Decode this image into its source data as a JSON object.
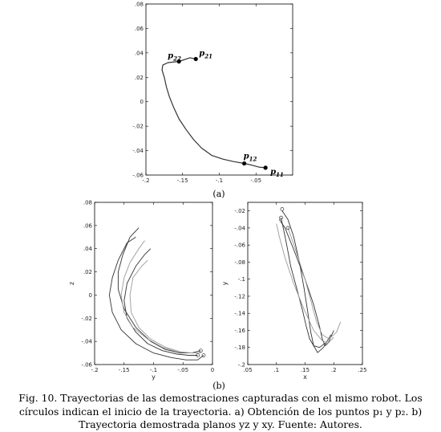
{
  "figure": {
    "label_a": "(a)",
    "label_b": "(b)",
    "caption": "Fig. 10. Trayectorias de las demostraciones capturadas con el mismo robot. Los círculos indican el inicio de la trayectoria. a) Obtención de los puntos p₁ y p₂. b) Trayectoria demostrada planos yz y xy. Fuente: Autores."
  },
  "colors": {
    "line": "#333333",
    "axes": "#000000",
    "light_line": "#9a9a9a"
  },
  "chart_data": [
    {
      "type": "line",
      "panel": "a",
      "xlim": [
        -0.2,
        0.0
      ],
      "ylim": [
        -0.06,
        0.08
      ],
      "xticks": [
        -0.2,
        -0.15,
        -0.1,
        -0.05
      ],
      "yticks": [
        -0.06,
        -0.04,
        -0.02,
        0,
        0.02,
        0.04,
        0.06,
        0.08
      ],
      "xlabel": "",
      "ylabel": "",
      "series": [
        {
          "x": [
            -0.132,
            -0.14,
            -0.155,
            -0.17,
            -0.177,
            -0.178,
            -0.175,
            -0.172,
            -0.168,
            -0.162,
            -0.155,
            -0.145,
            -0.135,
            -0.124,
            -0.11,
            -0.095,
            -0.08,
            -0.066,
            -0.055,
            -0.046,
            -0.037
          ],
          "y": [
            0.035,
            0.036,
            0.033,
            0.032,
            0.03,
            0.026,
            0.02,
            0.012,
            0.004,
            -0.005,
            -0.014,
            -0.023,
            -0.031,
            -0.038,
            -0.044,
            -0.047,
            -0.049,
            -0.0505,
            -0.052,
            -0.0535,
            -0.054
          ]
        }
      ],
      "points": [
        {
          "name": "p",
          "sub": "21",
          "x": -0.132,
          "y": 0.035
        },
        {
          "name": "p",
          "sub": "22",
          "x": -0.155,
          "y": 0.033
        },
        {
          "name": "p",
          "sub": "12",
          "x": -0.066,
          "y": -0.0505
        },
        {
          "name": "p",
          "sub": "11",
          "x": -0.037,
          "y": -0.054
        }
      ]
    },
    {
      "type": "line",
      "panel": "b-left",
      "xlim": [
        -0.2,
        0.0
      ],
      "ylim": [
        -0.06,
        0.08
      ],
      "xticks": [
        -0.2,
        -0.15,
        -0.1,
        -0.05,
        0
      ],
      "yticks": [
        -0.06,
        -0.04,
        -0.02,
        0,
        0.02,
        0.04,
        0.06,
        0.08
      ],
      "xlabel": "y",
      "ylabel": "z",
      "series": [
        {
          "x": [
            -0.13,
            -0.145,
            -0.16,
            -0.17,
            -0.175,
            -0.17,
            -0.155,
            -0.13,
            -0.1,
            -0.07,
            -0.045,
            -0.025,
            -0.015
          ],
          "y": [
            0.05,
            0.045,
            0.03,
            0.015,
            0.0,
            -0.015,
            -0.03,
            -0.042,
            -0.05,
            -0.054,
            -0.056,
            -0.056,
            -0.052
          ]
        },
        {
          "x": [
            -0.125,
            -0.14,
            -0.152,
            -0.16,
            -0.16,
            -0.15,
            -0.13,
            -0.105,
            -0.08,
            -0.055,
            -0.035,
            -0.02
          ],
          "y": [
            0.058,
            0.05,
            0.035,
            0.02,
            0.005,
            -0.012,
            -0.028,
            -0.04,
            -0.047,
            -0.05,
            -0.05,
            -0.048
          ]
        },
        {
          "x": [
            -0.105,
            -0.115,
            -0.13,
            -0.145,
            -0.15,
            -0.145,
            -0.13,
            -0.11,
            -0.085,
            -0.06,
            -0.04,
            -0.025
          ],
          "y": [
            0.04,
            0.035,
            0.025,
            0.01,
            -0.005,
            -0.02,
            -0.032,
            -0.042,
            -0.048,
            -0.051,
            -0.052,
            -0.052
          ]
        },
        {
          "x": [
            -0.115,
            -0.125,
            -0.14,
            -0.15,
            -0.155,
            -0.15,
            -0.135,
            -0.11,
            -0.085,
            -0.06,
            -0.038
          ],
          "y": [
            0.047,
            0.04,
            0.028,
            0.015,
            0.0,
            -0.015,
            -0.028,
            -0.038,
            -0.045,
            -0.049,
            -0.05
          ]
        },
        {
          "x": [
            -0.11,
            -0.12,
            -0.135,
            -0.14,
            -0.138,
            -0.125,
            -0.105,
            -0.08,
            -0.055,
            -0.035,
            -0.02
          ],
          "y": [
            0.03,
            0.025,
            0.015,
            0.0,
            -0.015,
            -0.028,
            -0.038,
            -0.045,
            -0.049,
            -0.05,
            -0.05
          ]
        }
      ],
      "start_points": [
        {
          "x": -0.015,
          "y": -0.052
        },
        {
          "x": -0.025,
          "y": -0.052
        },
        {
          "x": -0.02,
          "y": -0.048
        }
      ]
    },
    {
      "type": "line",
      "panel": "b-right",
      "xlim": [
        0.05,
        0.25
      ],
      "ylim": [
        -0.2,
        -0.01
      ],
      "xticks": [
        0.05,
        0.1,
        0.15,
        0.2,
        0.25
      ],
      "yticks": [
        -0.2,
        -0.18,
        -0.16,
        -0.14,
        -0.12,
        -0.1,
        -0.08,
        -0.06,
        -0.04,
        -0.02
      ],
      "xlabel": "x",
      "ylabel": "y",
      "series": [
        {
          "x": [
            0.108,
            0.112,
            0.118,
            0.125,
            0.135,
            0.145,
            0.152,
            0.158,
            0.165,
            0.175,
            0.185
          ],
          "y": [
            -0.028,
            -0.04,
            -0.06,
            -0.085,
            -0.11,
            -0.135,
            -0.155,
            -0.17,
            -0.178,
            -0.18,
            -0.175
          ]
        },
        {
          "x": [
            0.11,
            0.12,
            0.13,
            0.14,
            0.148,
            0.155,
            0.16,
            0.165,
            0.172,
            0.182,
            0.195
          ],
          "y": [
            -0.02,
            -0.03,
            -0.05,
            -0.08,
            -0.11,
            -0.14,
            -0.162,
            -0.178,
            -0.186,
            -0.18,
            -0.165
          ]
        },
        {
          "x": [
            0.105,
            0.115,
            0.13,
            0.15,
            0.165,
            0.175,
            0.18,
            0.185,
            0.19,
            0.2
          ],
          "y": [
            -0.03,
            -0.04,
            -0.065,
            -0.1,
            -0.13,
            -0.155,
            -0.17,
            -0.178,
            -0.175,
            -0.16
          ]
        },
        {
          "x": [
            0.1,
            0.105,
            0.115,
            0.13,
            0.148,
            0.165,
            0.18,
            0.19,
            0.2
          ],
          "y": [
            -0.035,
            -0.05,
            -0.075,
            -0.105,
            -0.135,
            -0.16,
            -0.172,
            -0.175,
            -0.168
          ]
        },
        {
          "x": [
            0.12,
            0.128,
            0.138,
            0.15,
            0.16,
            0.17,
            0.18,
            0.192,
            0.205,
            0.212
          ],
          "y": [
            -0.04,
            -0.055,
            -0.075,
            -0.1,
            -0.125,
            -0.15,
            -0.165,
            -0.17,
            -0.162,
            -0.15
          ]
        }
      ],
      "start_points": [
        {
          "x": 0.11,
          "y": -0.018
        },
        {
          "x": 0.108,
          "y": -0.028
        },
        {
          "x": 0.12,
          "y": -0.04
        }
      ]
    }
  ]
}
